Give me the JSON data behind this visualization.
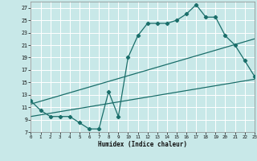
{
  "xlabel": "Humidex (Indice chaleur)",
  "bg_color": "#c8e8e8",
  "grid_color": "#ffffff",
  "line_color": "#1a6e6a",
  "line1_x": [
    0,
    1,
    2,
    3,
    4,
    5,
    6,
    7,
    8,
    9,
    10,
    11,
    12,
    13,
    14,
    15,
    16,
    17,
    18,
    19,
    20,
    21,
    22,
    23
  ],
  "line1_y": [
    12,
    10.5,
    9.5,
    9.5,
    9.5,
    8.5,
    7.5,
    7.5,
    13.5,
    9.5,
    19,
    22.5,
    24.5,
    24.5,
    24.5,
    25,
    26,
    27.5,
    25.5,
    25.5,
    22.5,
    21,
    18.5,
    16
  ],
  "line2_x": [
    0,
    23
  ],
  "line2_y": [
    9.5,
    15.5
  ],
  "line3_x": [
    0,
    23
  ],
  "line3_y": [
    11.5,
    22
  ],
  "xlim": [
    0,
    23
  ],
  "ylim": [
    7,
    28
  ],
  "yticks": [
    7,
    9,
    11,
    13,
    15,
    17,
    19,
    21,
    23,
    25,
    27
  ],
  "xticks": [
    0,
    1,
    2,
    3,
    4,
    5,
    6,
    7,
    8,
    9,
    10,
    11,
    12,
    13,
    14,
    15,
    16,
    17,
    18,
    19,
    20,
    21,
    22,
    23
  ]
}
